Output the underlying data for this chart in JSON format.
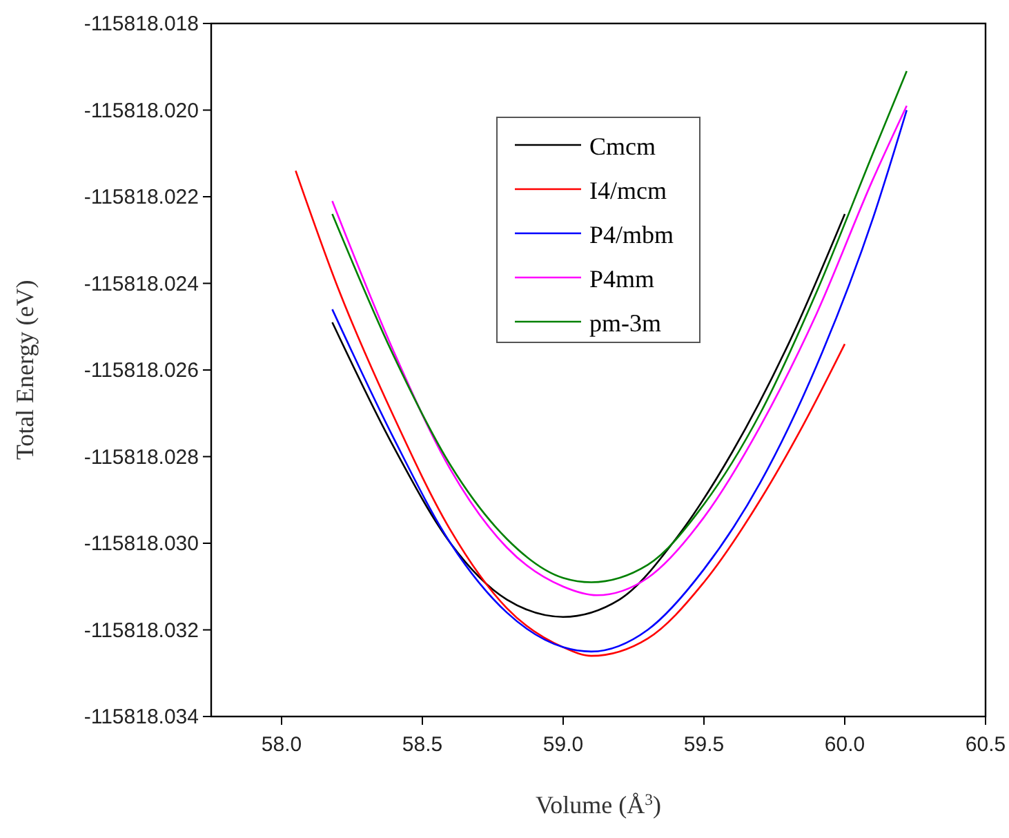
{
  "chart_data": {
    "type": "line",
    "xlabel": "Volume (Å$^{3}$)",
    "ylabel": "Total Energy (eV)",
    "xlim": [
      57.75,
      60.5
    ],
    "xticks": [
      {
        "value": 58,
        "label": "58.0"
      },
      {
        "value": 58.5,
        "label": "58.5"
      },
      {
        "value": 59,
        "label": "59.0"
      },
      {
        "value": 59.5,
        "label": "59.5"
      },
      {
        "value": 60,
        "label": "60.0"
      },
      {
        "value": 60.5,
        "label": "60.5"
      }
    ],
    "ylim": [
      -115818.034,
      -115818.018
    ],
    "yticks": [
      {
        "value": -115818.034,
        "label": "-115818.034"
      },
      {
        "value": -115818.032,
        "label": "-115818.032"
      },
      {
        "value": -115818.03,
        "label": "-115818.030"
      },
      {
        "value": -115818.028,
        "label": "-115818.028"
      },
      {
        "value": -115818.026,
        "label": "-115818.026"
      },
      {
        "value": -115818.024,
        "label": "-115818.024"
      },
      {
        "value": -115818.022,
        "label": "-115818.022"
      },
      {
        "value": -115818.02,
        "label": "-115818.020"
      },
      {
        "value": -115818.018,
        "label": "-115818.018"
      }
    ],
    "legend": "top",
    "marker": "none",
    "line_style": "solid",
    "series": [
      {
        "name": "Cmcm",
        "color": "#000000",
        "x": [
          58.18,
          58.4,
          58.6,
          58.8,
          59.0,
          59.2,
          59.4,
          59.6,
          59.8,
          60.0
        ],
        "values": [
          -115818.0249,
          -115818.0278,
          -115818.03,
          -115818.0313,
          -115818.0317,
          -115818.0313,
          -115818.0299,
          -115818.0279,
          -115818.0254,
          -115818.0224
        ]
      },
      {
        "name": "I4/mcm",
        "color": "#ff0000",
        "x": [
          58.05,
          58.2,
          58.4,
          58.6,
          58.8,
          59.0,
          59.1,
          59.3,
          59.5,
          59.7,
          59.85,
          60.0
        ],
        "values": [
          -115818.0214,
          -115818.0241,
          -115818.0271,
          -115818.0297,
          -115818.0315,
          -115818.0324,
          -115818.0326,
          -115818.0322,
          -115818.0309,
          -115818.029,
          -115818.0273,
          -115818.0254
        ]
      },
      {
        "name": "P4/mbm",
        "color": "#0000ff",
        "x": [
          58.18,
          58.4,
          58.6,
          58.8,
          59.0,
          59.1,
          59.3,
          59.5,
          59.7,
          59.9,
          60.1,
          60.22
        ],
        "values": [
          -115818.0246,
          -115818.0276,
          -115818.03,
          -115818.0316,
          -115818.0324,
          -115818.0325,
          -115818.032,
          -115818.0306,
          -115818.0286,
          -115818.0259,
          -115818.0225,
          -115818.02
        ]
      },
      {
        "name": "P4mm",
        "color": "#ff00ff",
        "x": [
          58.18,
          58.4,
          58.6,
          58.8,
          59.0,
          59.12,
          59.3,
          59.5,
          59.7,
          59.9,
          60.1,
          60.22
        ],
        "values": [
          -115818.0221,
          -115818.0256,
          -115818.0283,
          -115818.0301,
          -115818.031,
          -115818.0312,
          -115818.0308,
          -115818.0294,
          -115818.0273,
          -115818.0247,
          -115818.0216,
          -115818.0199
        ]
      },
      {
        "name": "pm-3m",
        "color": "#008000",
        "x": [
          58.18,
          58.4,
          58.6,
          58.8,
          59.0,
          59.1,
          59.3,
          59.5,
          59.7,
          59.9,
          60.1,
          60.22
        ],
        "values": [
          -115818.0224,
          -115818.0257,
          -115818.0282,
          -115818.0299,
          -115818.0308,
          -115818.0309,
          -115818.0305,
          -115818.0291,
          -115818.027,
          -115818.0242,
          -115818.021,
          -115818.0191
        ]
      }
    ]
  }
}
